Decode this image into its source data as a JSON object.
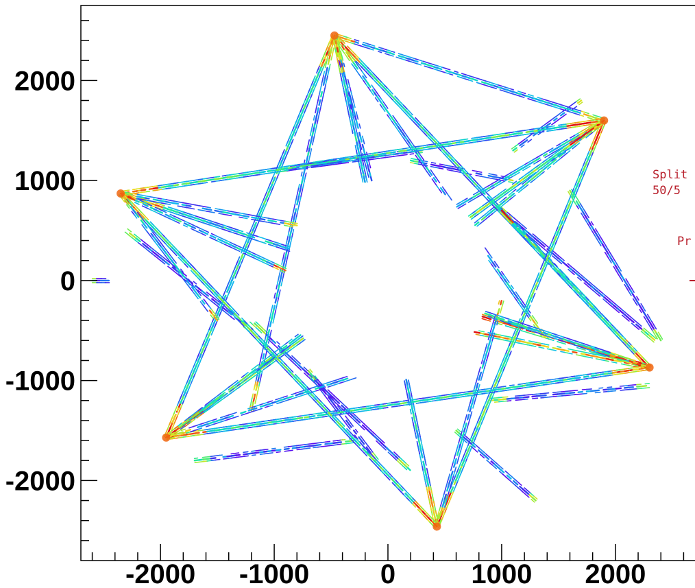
{
  "chart_data": {
    "type": "scatter",
    "title": "",
    "xlabel": "",
    "ylabel": "",
    "xlim": [
      -2700,
      2700
    ],
    "ylim": [
      -2800,
      2750
    ],
    "x_ticks": [
      -2000,
      -1000,
      0,
      1000,
      2000
    ],
    "x_tick_labels": [
      "-2000",
      "-1000",
      "0",
      "1000",
      "2000"
    ],
    "y_ticks": [
      2000,
      1000,
      0,
      -1000,
      -2000
    ],
    "y_tick_labels": [
      "2000",
      "1000",
      "0",
      "-1000",
      "-2000"
    ],
    "grid": false,
    "legend_placement": "right (clipped)",
    "legend_text": [
      "Split",
      "50/5",
      "Pr"
    ],
    "colormap": [
      "#5a0ff0",
      "#2a4cf0",
      "#10b8f0",
      "#10e8b0",
      "#80f040",
      "#f0e020",
      "#f06010",
      "#e01010"
    ],
    "vertices": [
      {
        "name": "top",
        "x": -470,
        "y": 2450
      },
      {
        "name": "upper-right",
        "x": 1900,
        "y": 1600
      },
      {
        "name": "lower-right",
        "x": 2300,
        "y": -870
      },
      {
        "name": "bottom",
        "x": 430,
        "y": -2460
      },
      {
        "name": "lower-left",
        "x": -1950,
        "y": -1570
      },
      {
        "name": "upper-left",
        "x": -2350,
        "y": 870
      }
    ],
    "tracks": [
      {
        "from": [
          -470,
          2450
        ],
        "to": [
          430,
          -2460
        ],
        "intensity": 0.35
      },
      {
        "from": [
          -470,
          2450
        ],
        "to": [
          2300,
          -870
        ],
        "intensity": 0.45
      },
      {
        "from": [
          -470,
          2450
        ],
        "to": [
          -1950,
          -1570
        ],
        "intensity": 0.5
      },
      {
        "from": [
          -470,
          2450
        ],
        "to": [
          -1200,
          -1300
        ],
        "intensity": 0.3
      },
      {
        "from": [
          -470,
          2450
        ],
        "to": [
          1400,
          -600
        ],
        "intensity": 0.3
      },
      {
        "from": [
          -470,
          2450
        ],
        "to": [
          150,
          -300
        ],
        "intensity": 0.2
      },
      {
        "from": [
          1900,
          1600
        ],
        "to": [
          -2350,
          870
        ],
        "intensity": 0.45
      },
      {
        "from": [
          1900,
          1600
        ],
        "to": [
          -1950,
          -1570
        ],
        "intensity": 0.55
      },
      {
        "from": [
          1900,
          1600
        ],
        "to": [
          430,
          -2460
        ],
        "intensity": 0.5
      },
      {
        "from": [
          1900,
          1600
        ],
        "to": [
          -470,
          2450
        ],
        "intensity": 0.3
      },
      {
        "from": [
          1900,
          1600
        ],
        "to": [
          -800,
          -200
        ],
        "intensity": 0.35
      },
      {
        "from": [
          1900,
          1600
        ],
        "to": [
          600,
          400
        ],
        "intensity": 0.4
      },
      {
        "from": [
          2300,
          -870
        ],
        "to": [
          -2350,
          870
        ],
        "intensity": 0.45
      },
      {
        "from": [
          2300,
          -870
        ],
        "to": [
          -470,
          2450
        ],
        "intensity": 0.4
      },
      {
        "from": [
          2300,
          -870
        ],
        "to": [
          -1950,
          -1570
        ],
        "intensity": 0.45
      },
      {
        "from": [
          2300,
          -870
        ],
        "to": [
          800,
          -350
        ],
        "intensity": 0.9
      },
      {
        "from": [
          2300,
          -870
        ],
        "to": [
          700,
          -500
        ],
        "intensity": 0.8
      },
      {
        "from": [
          2300,
          -870
        ],
        "to": [
          1000,
          700
        ],
        "intensity": 0.5
      },
      {
        "from": [
          430,
          -2460
        ],
        "to": [
          -470,
          2450
        ],
        "intensity": 0.35
      },
      {
        "from": [
          430,
          -2460
        ],
        "to": [
          -2350,
          870
        ],
        "intensity": 0.4
      },
      {
        "from": [
          430,
          -2460
        ],
        "to": [
          1900,
          1600
        ],
        "intensity": 0.45
      },
      {
        "from": [
          430,
          -2460
        ],
        "to": [
          1000,
          -200
        ],
        "intensity": 0.3
      },
      {
        "from": [
          -1950,
          -1570
        ],
        "to": [
          1900,
          1600
        ],
        "intensity": 0.55
      },
      {
        "from": [
          -1950,
          -1570
        ],
        "to": [
          2300,
          -870
        ],
        "intensity": 0.4
      },
      {
        "from": [
          -1950,
          -1570
        ],
        "to": [
          -470,
          2450
        ],
        "intensity": 0.4
      },
      {
        "from": [
          -1950,
          -1570
        ],
        "to": [
          -600,
          -400
        ],
        "intensity": 0.45
      },
      {
        "from": [
          -1950,
          -1570
        ],
        "to": [
          400,
          -700
        ],
        "intensity": 0.3
      },
      {
        "from": [
          -2350,
          870
        ],
        "to": [
          1900,
          1600
        ],
        "intensity": 0.45
      },
      {
        "from": [
          -2350,
          870
        ],
        "to": [
          2300,
          -870
        ],
        "intensity": 0.35
      },
      {
        "from": [
          -2350,
          870
        ],
        "to": [
          430,
          -2460
        ],
        "intensity": 0.45
      },
      {
        "from": [
          -2350,
          870
        ],
        "to": [
          -800,
          550
        ],
        "intensity": 0.3
      },
      {
        "from": [
          -2350,
          870
        ],
        "to": [
          -900,
          100
        ],
        "intensity": 0.35
      },
      {
        "from": [
          -2350,
          870
        ],
        "to": [
          -1500,
          -400
        ],
        "intensity": 0.3
      }
    ],
    "stray_segments": [
      {
        "from": [
          900,
          800
        ],
        "to": [
          2350,
          -600
        ],
        "intensity": 0.1
      },
      {
        "from": [
          1600,
          900
        ],
        "to": [
          2400,
          -600
        ],
        "intensity": 0.12
      },
      {
        "from": [
          -1200,
          -400
        ],
        "to": [
          200,
          -1900
        ],
        "intensity": 0.1
      },
      {
        "from": [
          -2300,
          500
        ],
        "to": [
          -1200,
          -500
        ],
        "intensity": 0.1
      },
      {
        "from": [
          200,
          1200
        ],
        "to": [
          1100,
          1000
        ],
        "intensity": 0.1
      },
      {
        "from": [
          -1000,
          1100
        ],
        "to": [
          300,
          1300
        ],
        "intensity": 0.08
      },
      {
        "from": [
          900,
          -1200
        ],
        "to": [
          2300,
          -1050
        ],
        "intensity": 0.15
      },
      {
        "from": [
          -1700,
          -1800
        ],
        "to": [
          -300,
          -1600
        ],
        "intensity": 0.12
      },
      {
        "from": [
          600,
          -1500
        ],
        "to": [
          1300,
          -2200
        ],
        "intensity": 0.15
      },
      {
        "from": [
          -700,
          -900
        ],
        "to": [
          -100,
          -1800
        ],
        "intensity": 0.1
      },
      {
        "from": [
          1100,
          1300
        ],
        "to": [
          1700,
          1800
        ],
        "intensity": 0.12
      },
      {
        "from": [
          -2600,
          0
        ],
        "to": [
          -2450,
          0
        ],
        "intensity": 0.1
      }
    ]
  }
}
